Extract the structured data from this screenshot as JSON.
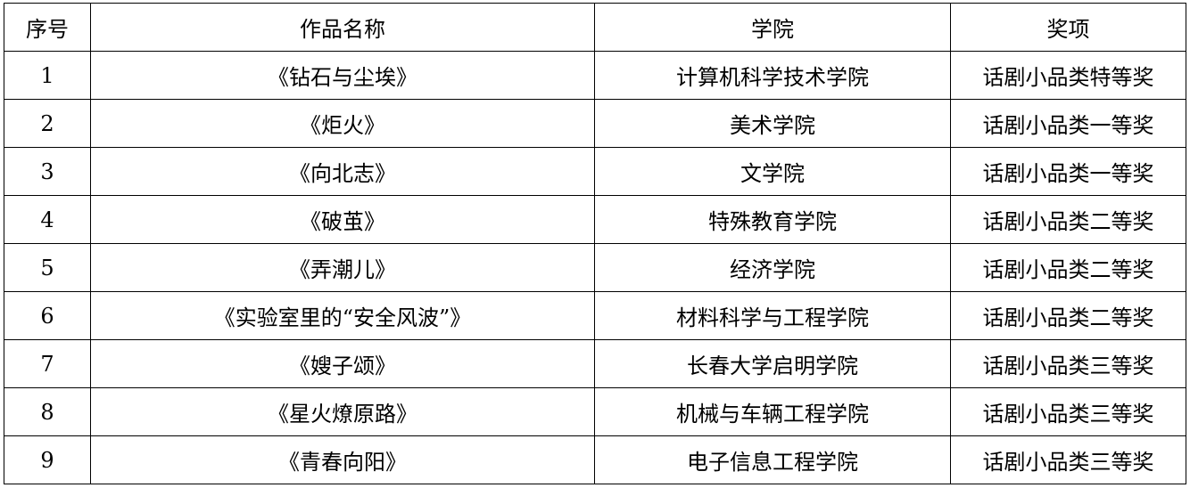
{
  "headers": [
    "序号",
    "作品名称",
    "学院",
    "奖项"
  ],
  "rows": [
    {
      "no": "1",
      "title": "《钻石与尘埃》",
      "college": "计算机科学技术学院",
      "award": "话剧小品类特等奖"
    },
    {
      "no": "2",
      "title": "《炬火》",
      "college": "美术学院",
      "award": "话剧小品类一等奖"
    },
    {
      "no": "3",
      "title": "《向北志》",
      "college": "文学院",
      "award": "话剧小品类一等奖"
    },
    {
      "no": "4",
      "title": "《破茧》",
      "college": "特殊教育学院",
      "award": "话剧小品类二等奖"
    },
    {
      "no": "5",
      "title": "《弄潮儿》",
      "college": "经济学院",
      "award": "话剧小品类二等奖"
    },
    {
      "no": "6",
      "title": "《实验室里的“安全风波”》",
      "college": "材料科学与工程学院",
      "award": "话剧小品类二等奖"
    },
    {
      "no": "7",
      "title": "《嫂子颂》",
      "college": "长春大学启明学院",
      "award": "话剧小品类三等奖"
    },
    {
      "no": "8",
      "title": "《星火燎原路》",
      "college": "机械与车辆工程学院",
      "award": "话剧小品类三等奖"
    },
    {
      "no": "9",
      "title": "《青春向阳》",
      "college": "电子信息工程学院",
      "award": "话剧小品类三等奖"
    }
  ]
}
